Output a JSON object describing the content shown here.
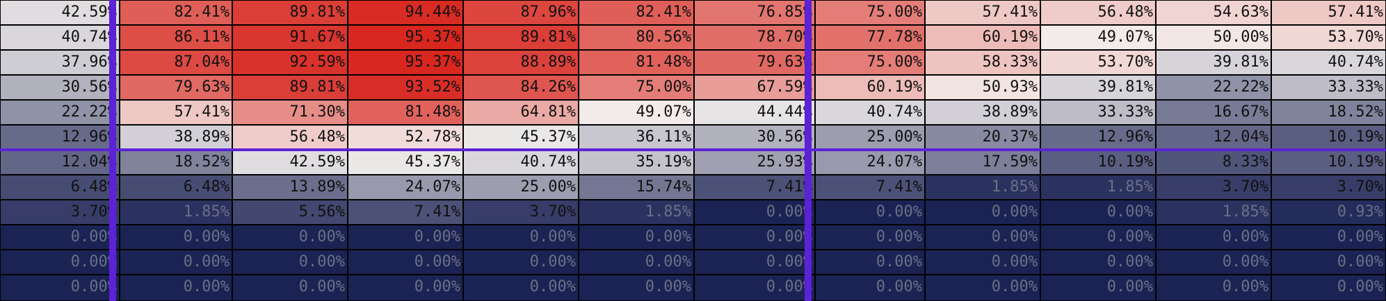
{
  "chart_data": {
    "type": "heatmap",
    "title": "",
    "xlabel": "",
    "ylabel": "",
    "value_range": [
      0,
      100
    ],
    "unit": "%",
    "rows": [
      [
        42.59,
        82.41,
        89.81,
        94.44,
        87.96,
        82.41,
        76.85,
        75.0,
        57.41,
        56.48,
        54.63,
        57.41
      ],
      [
        40.74,
        86.11,
        91.67,
        95.37,
        89.81,
        80.56,
        78.7,
        77.78,
        60.19,
        49.07,
        50.0,
        53.7
      ],
      [
        37.96,
        87.04,
        92.59,
        95.37,
        88.89,
        81.48,
        79.63,
        75.0,
        58.33,
        53.7,
        39.81,
        40.74
      ],
      [
        30.56,
        79.63,
        89.81,
        93.52,
        84.26,
        75.0,
        67.59,
        60.19,
        50.93,
        39.81,
        22.22,
        33.33
      ],
      [
        22.22,
        57.41,
        71.3,
        81.48,
        64.81,
        49.07,
        44.44,
        40.74,
        38.89,
        33.33,
        16.67,
        18.52
      ],
      [
        12.96,
        38.89,
        56.48,
        52.78,
        45.37,
        36.11,
        30.56,
        25.0,
        20.37,
        12.96,
        12.04,
        10.19
      ],
      [
        12.04,
        18.52,
        42.59,
        45.37,
        40.74,
        35.19,
        25.93,
        24.07,
        17.59,
        10.19,
        8.33,
        10.19
      ],
      [
        6.48,
        6.48,
        13.89,
        24.07,
        25.0,
        15.74,
        7.41,
        7.41,
        1.85,
        1.85,
        3.7,
        3.7
      ],
      [
        3.7,
        1.85,
        5.56,
        7.41,
        3.7,
        1.85,
        0.0,
        0.0,
        0.0,
        0.0,
        1.85,
        0.93
      ],
      [
        0.0,
        0.0,
        0.0,
        0.0,
        0.0,
        0.0,
        0.0,
        0.0,
        0.0,
        0.0,
        0.0,
        0.0
      ],
      [
        0.0,
        0.0,
        0.0,
        0.0,
        0.0,
        0.0,
        0.0,
        0.0,
        0.0,
        0.0,
        0.0,
        0.0
      ],
      [
        0.0,
        0.0,
        0.0,
        0.0,
        0.0,
        0.0,
        0.0,
        0.0,
        0.0,
        0.0,
        0.0,
        0.0
      ]
    ],
    "colorscale": {
      "low": "#1b2354",
      "mid": "#f4f0ee",
      "high": "#d7261e",
      "mid_value": 48
    },
    "divider_color": "#5b22d6",
    "divider_after_columns": [
      1,
      7
    ],
    "divider_after_rows": [
      6
    ]
  }
}
